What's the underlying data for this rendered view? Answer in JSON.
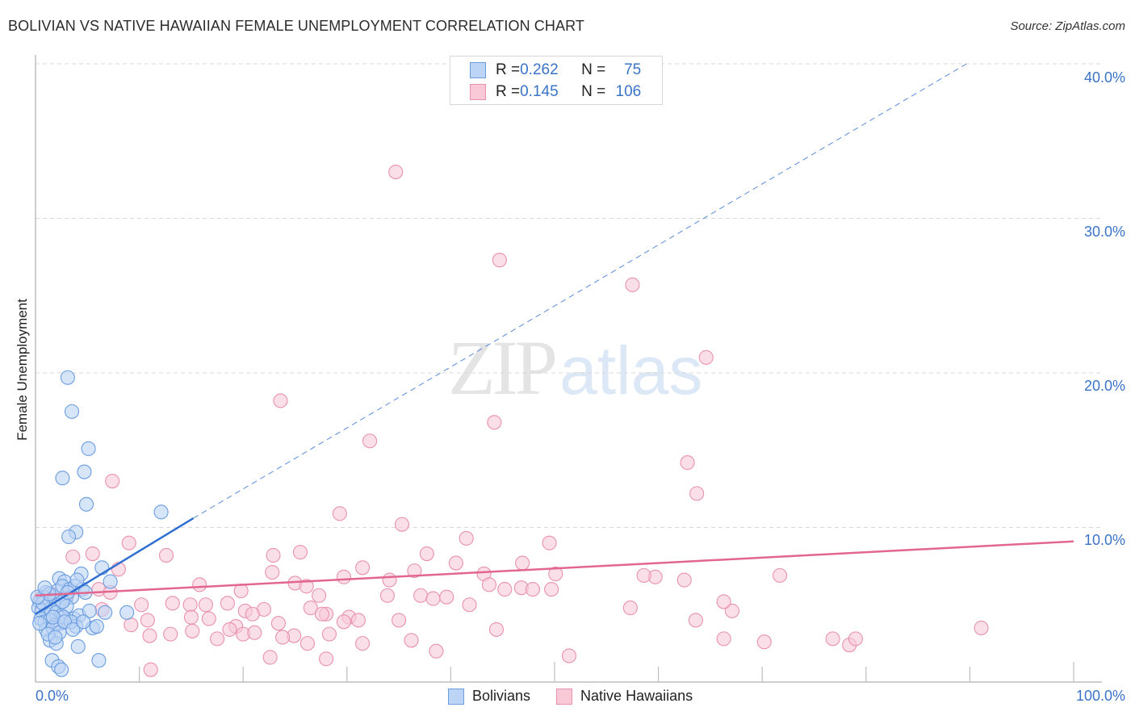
{
  "header": {
    "title": "BOLIVIAN VS NATIVE HAWAIIAN FEMALE UNEMPLOYMENT CORRELATION CHART",
    "source": "Source: ZipAtlas.com"
  },
  "watermark": {
    "zip": "ZIP",
    "atlas": "atlas"
  },
  "colors": {
    "blue_fill": "#bcd4f5",
    "blue_stroke": "#6a9de0",
    "blue_line": "#2f6fd1",
    "pink_fill": "#f9c9d8",
    "pink_stroke": "#e891ae",
    "pink_line": "#e2668f",
    "tick_text": "#3b73c8",
    "grid": "#d9d9d9"
  },
  "legend_top": {
    "rows": [
      {
        "series": "Bolivians",
        "r_label": "R = ",
        "r_value": "0.262",
        "n_label": "N = ",
        "n_value": "75"
      },
      {
        "series": "Native Hawaiians",
        "r_label": "R = ",
        "r_value": "0.145",
        "n_label": "N = ",
        "n_value": "106"
      }
    ]
  },
  "legend_bottom": {
    "items": [
      {
        "label": "Bolivians"
      },
      {
        "label": "Native Hawaiians"
      }
    ]
  },
  "axes": {
    "ylabel": "Female Unemployment",
    "y_ticks": [
      "40.0%",
      "30.0%",
      "20.0%",
      "10.0%"
    ],
    "x_tick_left": "0.0%",
    "x_tick_right": "100.0%"
  },
  "chart_data": {
    "type": "scatter",
    "title": "BOLIVIAN VS NATIVE HAWAIIAN FEMALE UNEMPLOYMENT CORRELATION CHART",
    "xlabel": "",
    "ylabel": "Female Unemployment",
    "xlim": [
      0,
      100
    ],
    "ylim": [
      0,
      42
    ],
    "x_ticks": [
      0,
      10,
      20,
      30,
      40,
      50,
      60,
      70,
      80,
      90,
      100
    ],
    "y_ticks": [
      10,
      20,
      30,
      40
    ],
    "grid": "horizontal dashed",
    "legend_position": "bottom-center",
    "series": [
      {
        "name": "Bolivians",
        "R": 0.262,
        "N": 75,
        "trend": {
          "x0": 0,
          "y0": 4.4,
          "x1": 15.2,
          "y1": 10.6,
          "extrapolated_to": [
            89.7,
            40.0
          ]
        },
        "points": [
          [
            3.1,
            19.7
          ],
          [
            3.5,
            17.5
          ],
          [
            5.1,
            15.1
          ],
          [
            4.7,
            13.6
          ],
          [
            2.6,
            13.2
          ],
          [
            4.9,
            11.5
          ],
          [
            12.1,
            11.0
          ],
          [
            3.9,
            9.7
          ],
          [
            3.2,
            9.4
          ],
          [
            6.4,
            7.4
          ],
          [
            4.4,
            7.0
          ],
          [
            7.2,
            6.5
          ],
          [
            2.3,
            6.7
          ],
          [
            2.8,
            6.5
          ],
          [
            1.0,
            5.8
          ],
          [
            1.6,
            5.6
          ],
          [
            2.1,
            5.9
          ],
          [
            2.6,
            6.2
          ],
          [
            3.3,
            6.0
          ],
          [
            3.8,
            6.2
          ],
          [
            4.5,
            6.0
          ],
          [
            0.4,
            5.2
          ],
          [
            0.8,
            5.5
          ],
          [
            1.2,
            5.0
          ],
          [
            1.8,
            5.3
          ],
          [
            2.2,
            5.0
          ],
          [
            2.9,
            5.4
          ],
          [
            3.5,
            5.5
          ],
          [
            0.3,
            4.8
          ],
          [
            0.6,
            4.6
          ],
          [
            1.1,
            4.4
          ],
          [
            1.5,
            4.7
          ],
          [
            2.0,
            4.5
          ],
          [
            2.5,
            4.3
          ],
          [
            3.0,
            4.9
          ],
          [
            0.5,
            4.1
          ],
          [
            0.9,
            3.9
          ],
          [
            1.4,
            4.0
          ],
          [
            1.9,
            3.7
          ],
          [
            2.4,
            3.8
          ],
          [
            3.7,
            4.1
          ],
          [
            4.2,
            4.3
          ],
          [
            1.0,
            3.4
          ],
          [
            1.7,
            3.5
          ],
          [
            2.3,
            3.2
          ],
          [
            3.9,
            3.6
          ],
          [
            5.5,
            3.5
          ],
          [
            8.8,
            4.5
          ],
          [
            1.4,
            2.7
          ],
          [
            2.0,
            2.5
          ],
          [
            4.1,
            2.3
          ],
          [
            1.6,
            1.4
          ],
          [
            2.2,
            1.0
          ],
          [
            6.1,
            1.4
          ],
          [
            2.5,
            0.8
          ],
          [
            0.7,
            5.1
          ],
          [
            1.3,
            5.7
          ],
          [
            2.7,
            4.2
          ],
          [
            3.4,
            3.9
          ],
          [
            4.8,
            5.8
          ],
          [
            5.2,
            4.6
          ],
          [
            0.2,
            5.5
          ],
          [
            0.9,
            6.1
          ],
          [
            1.7,
            4.2
          ],
          [
            2.8,
            3.9
          ],
          [
            3.6,
            3.4
          ],
          [
            4.6,
            3.9
          ],
          [
            5.9,
            3.6
          ],
          [
            6.7,
            4.5
          ],
          [
            0.4,
            3.8
          ],
          [
            1.2,
            3.1
          ],
          [
            1.9,
            2.9
          ],
          [
            2.6,
            5.2
          ],
          [
            3.1,
            5.8
          ],
          [
            4.0,
            6.6
          ]
        ]
      },
      {
        "name": "Native Hawaiians",
        "R": 0.145,
        "N": 106,
        "trend": {
          "x0": 0,
          "y0": 5.6,
          "x1": 100,
          "y1": 9.1
        },
        "points": [
          [
            34.7,
            33.0
          ],
          [
            44.7,
            27.3
          ],
          [
            57.5,
            25.7
          ],
          [
            64.6,
            21.0
          ],
          [
            23.6,
            18.2
          ],
          [
            44.2,
            16.8
          ],
          [
            32.2,
            15.6
          ],
          [
            62.8,
            14.2
          ],
          [
            63.7,
            12.2
          ],
          [
            7.4,
            13.0
          ],
          [
            29.3,
            10.9
          ],
          [
            35.3,
            10.2
          ],
          [
            41.5,
            9.3
          ],
          [
            49.5,
            9.0
          ],
          [
            9.0,
            9.0
          ],
          [
            22.9,
            8.2
          ],
          [
            25.5,
            8.4
          ],
          [
            37.7,
            8.3
          ],
          [
            5.5,
            8.3
          ],
          [
            3.6,
            8.1
          ],
          [
            12.6,
            8.2
          ],
          [
            31.5,
            7.4
          ],
          [
            40.5,
            7.7
          ],
          [
            46.9,
            7.7
          ],
          [
            22.8,
            7.1
          ],
          [
            29.7,
            6.8
          ],
          [
            36.5,
            7.2
          ],
          [
            43.2,
            7.0
          ],
          [
            50.1,
            7.0
          ],
          [
            59.7,
            6.8
          ],
          [
            62.5,
            6.6
          ],
          [
            71.7,
            6.9
          ],
          [
            8.0,
            7.3
          ],
          [
            15.8,
            6.3
          ],
          [
            19.8,
            5.9
          ],
          [
            25.0,
            6.4
          ],
          [
            26.1,
            6.2
          ],
          [
            27.3,
            5.6
          ],
          [
            34.1,
            6.6
          ],
          [
            43.7,
            6.3
          ],
          [
            45.2,
            6.0
          ],
          [
            46.8,
            6.1
          ],
          [
            47.9,
            6.0
          ],
          [
            49.7,
            6.0
          ],
          [
            58.6,
            6.9
          ],
          [
            6.1,
            6.0
          ],
          [
            7.2,
            5.8
          ],
          [
            3.0,
            5.5
          ],
          [
            1.5,
            5.7
          ],
          [
            0.5,
            5.4
          ],
          [
            10.2,
            5.0
          ],
          [
            13.2,
            5.1
          ],
          [
            14.9,
            5.0
          ],
          [
            16.4,
            5.0
          ],
          [
            18.5,
            5.1
          ],
          [
            20.2,
            4.6
          ],
          [
            22.0,
            4.7
          ],
          [
            26.5,
            4.8
          ],
          [
            28.0,
            4.4
          ],
          [
            30.2,
            4.2
          ],
          [
            33.9,
            5.6
          ],
          [
            37.1,
            5.6
          ],
          [
            38.3,
            5.4
          ],
          [
            41.8,
            5.0
          ],
          [
            6.4,
            4.7
          ],
          [
            15.0,
            4.2
          ],
          [
            16.7,
            4.1
          ],
          [
            19.3,
            3.6
          ],
          [
            20.9,
            4.4
          ],
          [
            23.4,
            3.8
          ],
          [
            27.6,
            4.4
          ],
          [
            29.7,
            3.9
          ],
          [
            31.1,
            4.0
          ],
          [
            35.0,
            4.0
          ],
          [
            44.4,
            3.4
          ],
          [
            57.3,
            4.8
          ],
          [
            63.6,
            4.0
          ],
          [
            67.1,
            4.6
          ],
          [
            66.3,
            5.2
          ],
          [
            9.2,
            3.7
          ],
          [
            10.8,
            4.0
          ],
          [
            11.0,
            3.0
          ],
          [
            13.0,
            3.1
          ],
          [
            17.5,
            2.8
          ],
          [
            20.0,
            3.1
          ],
          [
            21.1,
            3.2
          ],
          [
            24.9,
            3.0
          ],
          [
            26.2,
            2.5
          ],
          [
            28.3,
            3.1
          ],
          [
            31.5,
            2.5
          ],
          [
            36.2,
            2.7
          ],
          [
            38.6,
            2.0
          ],
          [
            51.4,
            1.7
          ],
          [
            15.1,
            3.3
          ],
          [
            18.7,
            3.4
          ],
          [
            23.8,
            2.9
          ],
          [
            66.3,
            2.8
          ],
          [
            70.2,
            2.6
          ],
          [
            76.8,
            2.8
          ],
          [
            78.4,
            2.4
          ],
          [
            79.0,
            2.8
          ],
          [
            91.1,
            3.5
          ],
          [
            11.1,
            0.8
          ],
          [
            22.6,
            1.6
          ],
          [
            28.0,
            1.5
          ],
          [
            39.6,
            5.5
          ]
        ]
      }
    ]
  }
}
